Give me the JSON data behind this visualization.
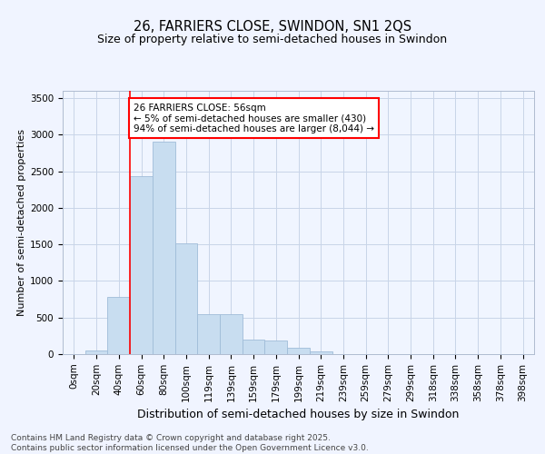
{
  "title": "26, FARRIERS CLOSE, SWINDON, SN1 2QS",
  "subtitle": "Size of property relative to semi-detached houses in Swindon",
  "xlabel": "Distribution of semi-detached houses by size in Swindon",
  "ylabel": "Number of semi-detached properties",
  "bar_labels": [
    "0sqm",
    "20sqm",
    "40sqm",
    "60sqm",
    "80sqm",
    "100sqm",
    "119sqm",
    "139sqm",
    "159sqm",
    "179sqm",
    "199sqm",
    "219sqm",
    "239sqm",
    "259sqm",
    "279sqm",
    "299sqm",
    "318sqm",
    "338sqm",
    "358sqm",
    "378sqm",
    "398sqm"
  ],
  "bar_values": [
    0,
    50,
    780,
    2430,
    2900,
    1520,
    545,
    545,
    200,
    190,
    85,
    40,
    0,
    0,
    0,
    0,
    0,
    0,
    0,
    0,
    0
  ],
  "bar_color": "#c8ddf0",
  "bar_edge_color": "#a0bcd8",
  "vline_x": 3.0,
  "annotation_text": "26 FARRIERS CLOSE: 56sqm\n← 5% of semi-detached houses are smaller (430)\n94% of semi-detached houses are larger (8,044) →",
  "annotation_box_color": "white",
  "annotation_box_edge_color": "red",
  "vline_color": "red",
  "ylim": [
    0,
    3600
  ],
  "yticks": [
    0,
    500,
    1000,
    1500,
    2000,
    2500,
    3000,
    3500
  ],
  "background_color": "#f0f4ff",
  "plot_bg_color": "#f0f5ff",
  "footer_text": "Contains HM Land Registry data © Crown copyright and database right 2025.\nContains public sector information licensed under the Open Government Licence v3.0.",
  "grid_color": "#c8d4e8",
  "title_fontsize": 10.5,
  "subtitle_fontsize": 9,
  "xlabel_fontsize": 9,
  "ylabel_fontsize": 8,
  "tick_fontsize": 7.5,
  "annotation_fontsize": 7.5,
  "footer_fontsize": 6.5
}
